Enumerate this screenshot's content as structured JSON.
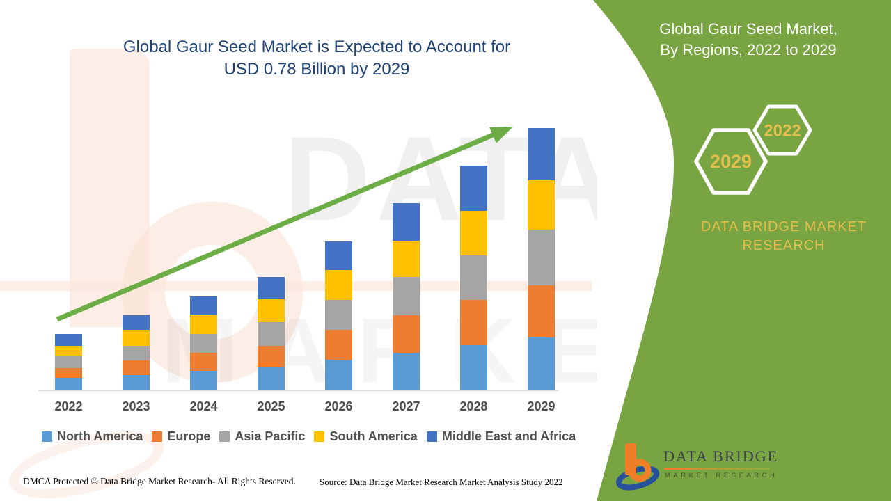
{
  "title": {
    "line1": "Global Gaur Seed Market is Expected to Account for",
    "line2": "USD 0.78 Billion by 2029",
    "color": "#1F4273"
  },
  "panel": {
    "bg": "#78A441",
    "heading_line1": "Global Gaur Seed Market,",
    "heading_line2": "By Regions, 2022 to 2029",
    "hexagons": [
      {
        "label": "2029"
      },
      {
        "label": "2022"
      }
    ],
    "brand_line1": "DATA BRIDGE MARKET",
    "brand_line2": "RESEARCH",
    "accent": "#E2BE4C"
  },
  "watermark": {
    "line1": "DATA BRIDGE",
    "line2": "MARKET RESEARCH"
  },
  "logo": {
    "name": "DATA BRIDGE",
    "subtitle": "MARKET RESEARCH"
  },
  "footer": {
    "dmca": "DMCA Protected © Data Bridge Market Research- All Rights Reserved.",
    "source": "Source: Data Bridge Market Research Market Analysis Study 2022"
  },
  "chart_data": {
    "type": "bar",
    "stacked": true,
    "title": "Global Gaur Seed Market is Expected to Account for USD 0.78 Billion by 2029",
    "unit": "USD Billion",
    "categories": [
      "2022",
      "2023",
      "2024",
      "2025",
      "2026",
      "2027",
      "2028",
      "2029"
    ],
    "series": [
      {
        "name": "North America",
        "color": "#5B9BD5",
        "values": [
          0.035,
          0.044,
          0.056,
          0.069,
          0.089,
          0.11,
          0.133,
          0.156
        ]
      },
      {
        "name": "Europe",
        "color": "#ED7D31",
        "values": [
          0.029,
          0.044,
          0.054,
          0.062,
          0.089,
          0.112,
          0.135,
          0.156
        ]
      },
      {
        "name": "Asia Pacific",
        "color": "#A5A5A5",
        "values": [
          0.037,
          0.042,
          0.056,
          0.071,
          0.089,
          0.114,
          0.133,
          0.166
        ]
      },
      {
        "name": "South America",
        "color": "#FFC000",
        "values": [
          0.029,
          0.048,
          0.056,
          0.067,
          0.089,
          0.108,
          0.133,
          0.146
        ]
      },
      {
        "name": "Middle East and Africa",
        "color": "#4472C4",
        "values": [
          0.035,
          0.044,
          0.056,
          0.067,
          0.087,
          0.112,
          0.135,
          0.156
        ]
      }
    ],
    "totals_estimated_usd_billion": [
      0.166,
      0.222,
      0.278,
      0.336,
      0.443,
      0.556,
      0.669,
      0.78
    ],
    "ylim": [
      0,
      0.8
    ],
    "y_axis_labels": false,
    "gridlines": false,
    "legend_position": "bottom",
    "trend_arrow": true,
    "trend_arrow_color": "#6CAE45"
  }
}
